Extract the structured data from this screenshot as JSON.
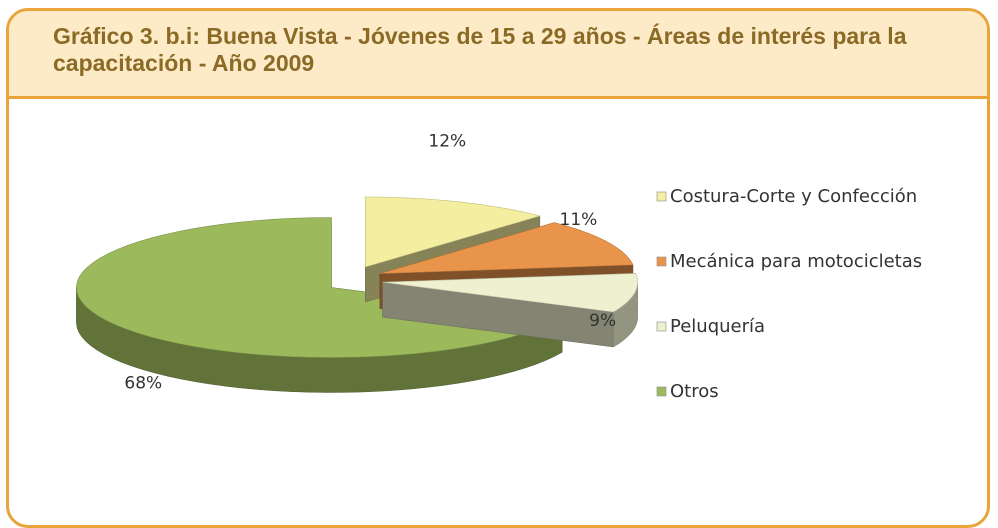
{
  "chart_data": {
    "type": "pie",
    "title": "Gráfico 3. b.i: Buena Vista - Jóvenes de 15 a 29 años - Áreas de interés para la capacitación - Año 2009",
    "categories": [
      "Costura-Corte y Confección",
      "Mecánica para motocicletas",
      "Peluquería",
      "Otros"
    ],
    "values": [
      12,
      11,
      9,
      68
    ],
    "value_labels": [
      "12%",
      "11%",
      "9%",
      "68%"
    ],
    "colors": [
      "#f3eea0",
      "#e8944a",
      "#eef0cf",
      "#9cba5c"
    ],
    "legend": "right"
  }
}
